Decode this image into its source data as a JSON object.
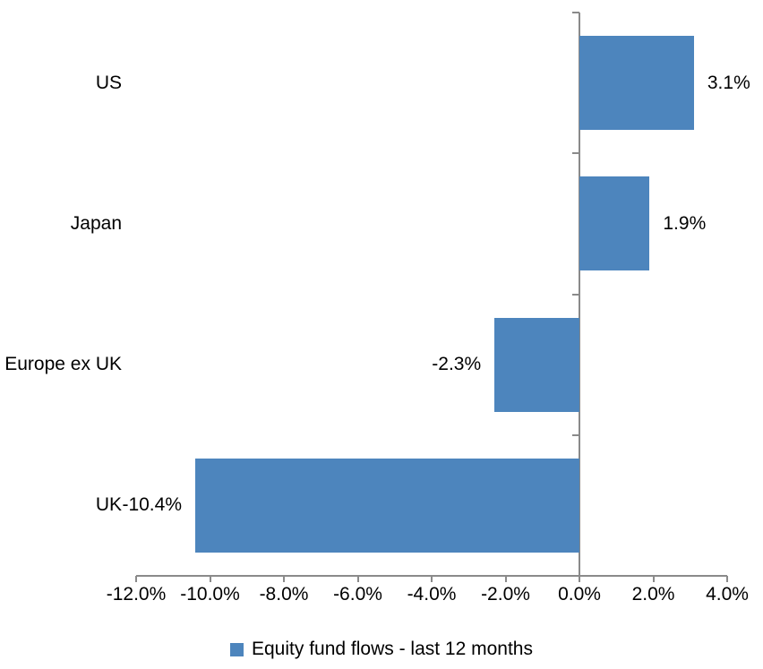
{
  "chart_data": {
    "type": "bar",
    "orientation": "horizontal",
    "title": "",
    "categories": [
      "US",
      "Japan",
      "Europe ex UK",
      "UK"
    ],
    "series": [
      {
        "name": "Equity fund flows - last 12 months",
        "values": [
          3.1,
          1.9,
          -2.3,
          -10.4
        ],
        "data_labels": [
          "3.1%",
          "1.9%",
          "-2.3%",
          "-10.4%"
        ]
      }
    ],
    "xlabel": "",
    "ylabel": "",
    "xlim": [
      -12.0,
      4.0
    ],
    "x_ticks": [
      -12,
      -10,
      -8,
      -6,
      -4,
      -2,
      0,
      2,
      4
    ],
    "x_tick_labels": [
      "-12.0%",
      "-10.0%",
      "-8.0%",
      "-6.0%",
      "-4.0%",
      "-2.0%",
      "0.0%",
      "2.0%",
      "4.0%"
    ],
    "grid": false,
    "legend_position": "bottom",
    "legend_entries": [
      "Equity fund flows - last 12 months"
    ],
    "colors": {
      "bar_fill": "#4D85BD",
      "axis_line": "#8A8A8A",
      "text": "#000000",
      "background": "#FFFFFF"
    }
  }
}
